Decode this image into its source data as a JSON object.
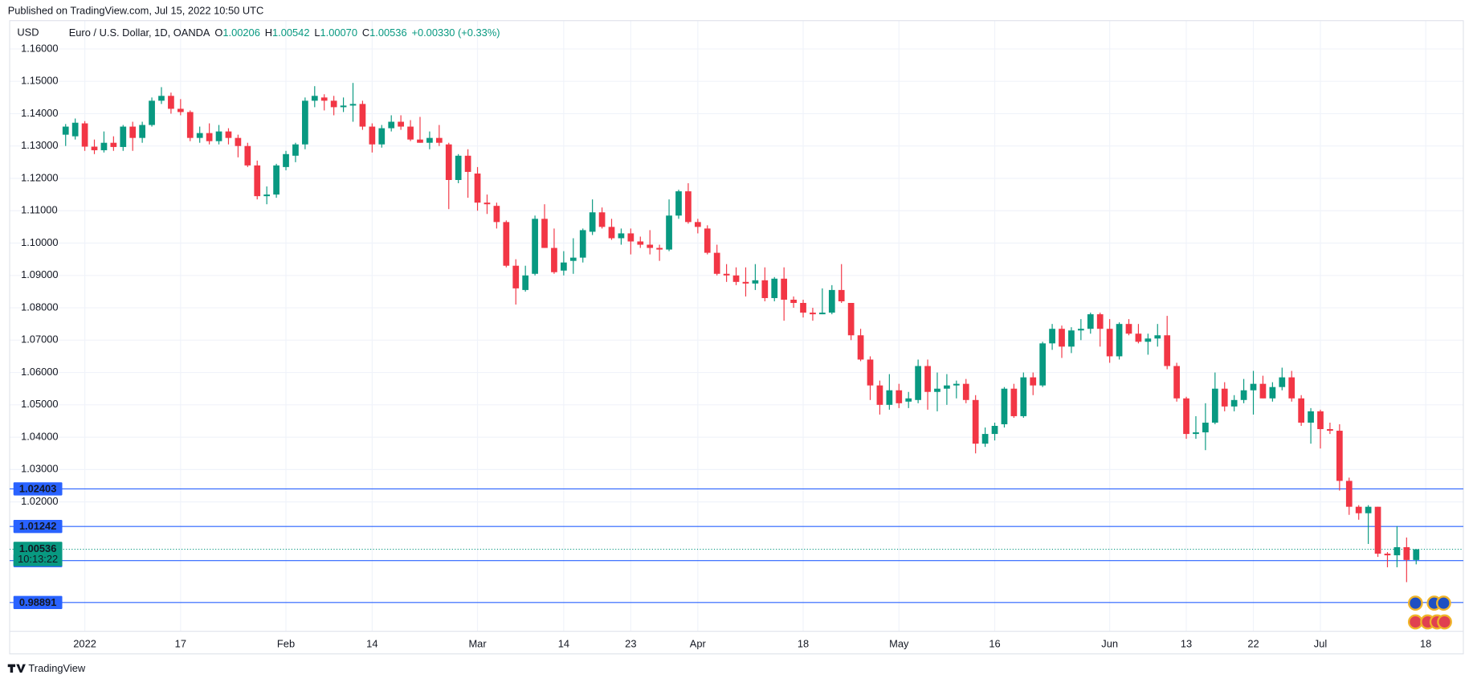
{
  "chart_data": {
    "type": "candlestick",
    "published": "Published on TradingView.com, Jul 15, 2022 10:50 UTC",
    "currency": "USD",
    "title": "Euro / U.S. Dollar, 1D, OANDA",
    "ohlc_legend": [
      {
        "key": "O",
        "value": "1.00206"
      },
      {
        "key": "H",
        "value": "1.00542"
      },
      {
        "key": "L",
        "value": "1.00070"
      },
      {
        "key": "C",
        "value": "1.00536"
      }
    ],
    "change": "+0.00330 (+0.33%)",
    "footer": "TradingView",
    "up_color": "#089981",
    "down_color": "#f23645",
    "grid": true,
    "ylim": [
      0.98,
      1.167
    ],
    "yticks": [
      {
        "value": 1.16,
        "label": "1.16000"
      },
      {
        "value": 1.15,
        "label": "1.15000"
      },
      {
        "value": 1.14,
        "label": "1.14000"
      },
      {
        "value": 1.13,
        "label": "1.13000"
      },
      {
        "value": 1.12,
        "label": "1.12000"
      },
      {
        "value": 1.11,
        "label": "1.11000"
      },
      {
        "value": 1.1,
        "label": "1.10000"
      },
      {
        "value": 1.09,
        "label": "1.09000"
      },
      {
        "value": 1.08,
        "label": "1.08000"
      },
      {
        "value": 1.07,
        "label": "1.07000"
      },
      {
        "value": 1.06,
        "label": "1.06000"
      },
      {
        "value": 1.05,
        "label": "1.05000"
      },
      {
        "value": 1.04,
        "label": "1.04000"
      },
      {
        "value": 1.03,
        "label": "1.03000"
      },
      {
        "value": 1.02,
        "label": "1.02000"
      }
    ],
    "categories": [
      null,
      null,
      "2022",
      null,
      null,
      null,
      null,
      null,
      null,
      null,
      null,
      null,
      "17",
      null,
      null,
      null,
      null,
      null,
      null,
      null,
      null,
      null,
      null,
      "Feb",
      null,
      null,
      null,
      null,
      null,
      null,
      null,
      null,
      "14",
      null,
      null,
      null,
      null,
      null,
      null,
      null,
      null,
      null,
      null,
      "Mar",
      null,
      null,
      null,
      null,
      null,
      null,
      null,
      null,
      "14",
      null,
      null,
      null,
      null,
      null,
      null,
      "23",
      null,
      null,
      null,
      null,
      null,
      null,
      "Apr",
      null,
      null,
      null,
      null,
      null,
      null,
      null,
      null,
      null,
      null,
      "18",
      null,
      null,
      null,
      null,
      null,
      null,
      null,
      null,
      null,
      "May",
      null,
      null,
      null,
      null,
      null,
      null,
      null,
      null,
      null,
      "16",
      null,
      null,
      null,
      null,
      null,
      null,
      null,
      null,
      null,
      null,
      null,
      "Jun",
      null,
      null,
      null,
      null,
      null,
      null,
      null,
      "13",
      null,
      null,
      null,
      null,
      null,
      null,
      "22",
      null,
      null,
      null,
      null,
      null,
      null,
      "Jul",
      null,
      null,
      null,
      null,
      null,
      null,
      null,
      null,
      null,
      null,
      "18"
    ],
    "open": [
      1.1335,
      1.133,
      1.137,
      1.1298,
      1.1287,
      1.131,
      1.1297,
      1.136,
      1.1325,
      1.1365,
      1.144,
      1.1455,
      1.1415,
      1.1405,
      1.1325,
      1.134,
      1.1315,
      1.1345,
      1.1325,
      1.13,
      1.124,
      1.1145,
      1.115,
      1.1235,
      1.127,
      1.1305,
      1.144,
      1.145,
      1.144,
      1.142,
      1.1425,
      1.143,
      1.136,
      1.1305,
      1.1355,
      1.1375,
      1.136,
      1.132,
      1.131,
      1.1325,
      1.1305,
      1.1195,
      1.127,
      1.1215,
      1.1125,
      1.1115,
      1.1065,
      1.093,
      1.0855,
      1.0905,
      1.1075,
      1.0985,
      1.0915,
      1.0945,
      1.0955,
      1.1035,
      1.1095,
      1.105,
      1.1015,
      1.103,
      1.1005,
      1.0995,
      1.0985,
      1.098,
      1.1085,
      1.116,
      1.1065,
      1.1045,
      1.097,
      1.0905,
      1.09,
      1.088,
      1.0875,
      1.0885,
      1.083,
      1.089,
      1.0825,
      1.0815,
      1.0785,
      1.078,
      1.0785,
      1.0855,
      1.0815,
      1.0715,
      1.064,
      1.056,
      1.05,
      1.0545,
      1.051,
      1.0515,
      1.062,
      1.054,
      1.055,
      1.056,
      1.0565,
      1.0515,
      1.038,
      1.041,
      1.044,
      1.055,
      1.0465,
      1.0585,
      1.056,
      1.069,
      1.0735,
      1.068,
      1.073,
      1.0735,
      1.078,
      1.0735,
      1.065,
      1.075,
      1.072,
      1.0695,
      1.0705,
      1.0715,
      1.062,
      1.052,
      1.041,
      1.0415,
      1.0445,
      1.055,
      1.0495,
      1.0515,
      1.0545,
      1.0565,
      1.052,
      1.0555,
      1.0585,
      1.052,
      1.0445,
      1.048,
      1.0425,
      1.042,
      1.0265,
      1.0185,
      1.0165,
      1.0185,
      1.004,
      1.0035,
      1.006,
      1.00206,
      null
    ],
    "high": [
      1.1368,
      1.1385,
      1.1377,
      1.132,
      1.1345,
      1.133,
      1.1365,
      1.1375,
      1.1375,
      1.145,
      1.1482,
      1.1465,
      1.1445,
      1.141,
      1.136,
      1.137,
      1.1365,
      1.1355,
      1.1335,
      1.131,
      1.1255,
      1.1175,
      1.1245,
      1.1285,
      1.131,
      1.145,
      1.1485,
      1.146,
      1.1455,
      1.145,
      1.1495,
      1.144,
      1.137,
      1.1365,
      1.1395,
      1.1395,
      1.138,
      1.139,
      1.1345,
      1.1365,
      1.131,
      1.1275,
      1.129,
      1.1235,
      1.115,
      1.1125,
      1.107,
      1.095,
      1.093,
      1.1085,
      1.112,
      1.1045,
      1.0975,
      1.1015,
      1.1045,
      1.1135,
      1.111,
      1.1075,
      1.1045,
      1.1045,
      1.102,
      1.104,
      1.0995,
      1.1135,
      1.1165,
      1.1185,
      1.1075,
      1.1055,
      1.0995,
      1.0935,
      1.0925,
      1.0925,
      1.0935,
      1.0925,
      1.0895,
      1.0925,
      1.0835,
      1.0825,
      1.08,
      1.086,
      1.087,
      1.0935,
      1.0815,
      1.0735,
      1.065,
      1.0575,
      1.0595,
      1.0565,
      1.054,
      1.064,
      1.064,
      1.06,
      1.0595,
      1.0575,
      1.058,
      1.053,
      1.043,
      1.0445,
      1.0555,
      1.0565,
      1.06,
      1.06,
      1.0695,
      1.075,
      1.0745,
      1.074,
      1.0765,
      1.0785,
      1.0785,
      1.0765,
      1.0755,
      1.0765,
      1.075,
      1.072,
      1.075,
      1.0775,
      1.063,
      1.0525,
      1.0465,
      1.0505,
      1.06,
      1.057,
      1.053,
      1.058,
      1.0605,
      1.059,
      1.057,
      1.0615,
      1.0605,
      1.053,
      1.049,
      1.0485,
      1.0445,
      1.044,
      1.0275,
      1.019,
      1.019,
      1.0185,
      1.0045,
      1.0125,
      1.009,
      1.00542,
      null
    ],
    "low": [
      1.13,
      1.132,
      1.1285,
      1.1275,
      1.128,
      1.1285,
      1.1285,
      1.1285,
      1.131,
      1.136,
      1.143,
      1.14,
      1.1395,
      1.1315,
      1.131,
      1.1305,
      1.1305,
      1.1305,
      1.1265,
      1.1235,
      1.1135,
      1.112,
      1.114,
      1.1225,
      1.125,
      1.129,
      1.142,
      1.141,
      1.1395,
      1.1405,
      1.1375,
      1.135,
      1.128,
      1.1295,
      1.1345,
      1.135,
      1.1315,
      1.131,
      1.129,
      1.13,
      1.1105,
      1.1185,
      1.114,
      1.11,
      1.109,
      1.1045,
      1.0925,
      1.081,
      1.085,
      1.09,
      1.0985,
      1.0905,
      1.09,
      1.0905,
      1.094,
      1.1025,
      1.1045,
      1.101,
      1.0995,
      1.0965,
      1.0985,
      1.0965,
      1.0945,
      1.0975,
      1.1075,
      1.106,
      1.103,
      1.0965,
      1.09,
      1.088,
      1.087,
      1.0835,
      1.0855,
      1.082,
      1.082,
      1.076,
      1.08,
      1.077,
      1.076,
      1.078,
      1.078,
      1.0815,
      1.07,
      1.0635,
      1.0515,
      1.047,
      1.0485,
      1.049,
      1.049,
      1.0505,
      1.0485,
      1.048,
      1.05,
      1.052,
      1.0505,
      1.035,
      1.037,
      1.039,
      1.043,
      1.046,
      1.046,
      1.053,
      1.0555,
      1.067,
      1.0645,
      1.066,
      1.07,
      1.072,
      1.068,
      1.063,
      1.064,
      1.0715,
      1.069,
      1.0655,
      1.068,
      1.061,
      1.051,
      1.0395,
      1.0395,
      1.036,
      1.044,
      1.048,
      1.048,
      1.0505,
      1.047,
      1.052,
      1.051,
      1.0545,
      1.051,
      1.0435,
      1.038,
      1.0365,
      1.041,
      1.0235,
      1.016,
      1.0145,
      1.007,
      1.003,
      0.9998,
      0.9998,
      0.9952,
      1.0007,
      null
    ],
    "close": [
      1.136,
      1.1372,
      1.1298,
      1.1287,
      1.131,
      1.1297,
      1.136,
      1.1325,
      1.1365,
      1.144,
      1.1455,
      1.1415,
      1.1405,
      1.1325,
      1.134,
      1.1315,
      1.1345,
      1.1325,
      1.13,
      1.124,
      1.1145,
      1.115,
      1.124,
      1.1275,
      1.1305,
      1.144,
      1.1455,
      1.144,
      1.142,
      1.1425,
      1.143,
      1.136,
      1.1305,
      1.1355,
      1.1375,
      1.136,
      1.132,
      1.131,
      1.1325,
      1.131,
      1.1195,
      1.127,
      1.122,
      1.1125,
      1.112,
      1.1065,
      1.093,
      1.086,
      1.09,
      1.1075,
      1.0985,
      1.091,
      1.094,
      1.0955,
      1.104,
      1.1095,
      1.105,
      1.1015,
      1.103,
      1.1005,
      1.0995,
      1.0985,
      1.098,
      1.1085,
      1.116,
      1.1065,
      1.105,
      1.097,
      1.0905,
      1.09,
      1.088,
      1.0875,
      1.0885,
      1.083,
      1.089,
      1.0825,
      1.0815,
      1.0785,
      1.078,
      1.0785,
      1.0855,
      1.082,
      1.0715,
      1.064,
      1.056,
      1.05,
      1.0545,
      1.0505,
      1.052,
      1.062,
      1.054,
      1.055,
      1.056,
      1.0565,
      1.0515,
      1.038,
      1.041,
      1.0435,
      1.055,
      1.0465,
      1.0585,
      1.056,
      1.069,
      1.0735,
      1.068,
      1.073,
      1.0735,
      1.078,
      1.0735,
      1.065,
      1.075,
      1.072,
      1.0695,
      1.0705,
      1.0715,
      1.062,
      1.052,
      1.041,
      1.0415,
      1.0445,
      1.055,
      1.0495,
      1.0515,
      1.0545,
      1.0565,
      1.052,
      1.0555,
      1.0585,
      1.052,
      1.0445,
      1.048,
      1.0425,
      1.042,
      1.0265,
      1.0185,
      1.0165,
      1.0185,
      1.004,
      1.0035,
      1.006,
      1.00206,
      1.00536,
      null
    ],
    "price_lines": [
      {
        "value": 1.02403,
        "color": "#2962ff"
      },
      {
        "value": 1.01242,
        "color": "#2962ff"
      },
      {
        "value": 1.00185,
        "color": "#2962ff"
      },
      {
        "value": 0.98891,
        "color": "#2962ff"
      }
    ],
    "last_price": {
      "value": 1.00536,
      "countdown": "10:13:22",
      "color": "#089981"
    }
  }
}
